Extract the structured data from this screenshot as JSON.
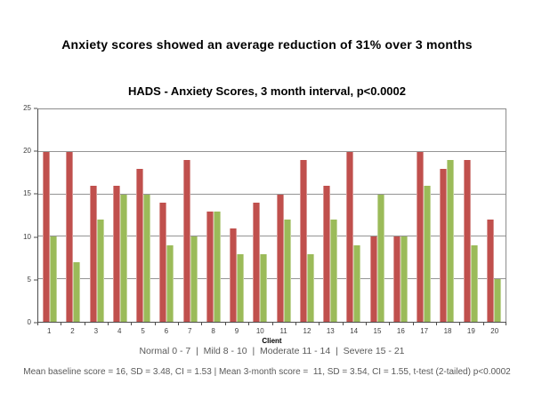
{
  "page": {
    "main_title": "Anxiety scores showed an average reduction of 31% over 3 months",
    "severity_scale": "Normal 0 - 7  |  Mild 8 - 10  |  Moderate 11 - 14  |  Severe 15 - 21",
    "footer_stats": "Mean baseline score = 16, SD = 3.48, CI = 1.53 | Mean 3-month score =  11, SD = 3.54, CI = 1.55, t-test (2-tailed) p<0.0002"
  },
  "chart_data": {
    "type": "bar",
    "title": "HADS - Anxiety Scores, 3 month interval, p<0.0002",
    "xlabel": "Client",
    "ylabel": "",
    "ylim": [
      0,
      25
    ],
    "yticks": [
      0,
      5,
      10,
      15,
      20,
      25
    ],
    "grid": true,
    "legend": "none",
    "categories": [
      "1",
      "2",
      "3",
      "4",
      "5",
      "6",
      "7",
      "8",
      "9",
      "10",
      "11",
      "12",
      "13",
      "14",
      "15",
      "16",
      "17",
      "18",
      "19",
      "20"
    ],
    "series": [
      {
        "name": "Baseline",
        "color": "#C0504D",
        "values": [
          20,
          20,
          16,
          16,
          18,
          14,
          19,
          13,
          11,
          14,
          15,
          19,
          16,
          20,
          10,
          10,
          20,
          18,
          19,
          12
        ]
      },
      {
        "name": "3-month",
        "color": "#9BBB59",
        "values": [
          10,
          7,
          12,
          15,
          15,
          9,
          10,
          13,
          8,
          8,
          12,
          8,
          12,
          9,
          15,
          10,
          16,
          19,
          9,
          5
        ]
      }
    ]
  }
}
